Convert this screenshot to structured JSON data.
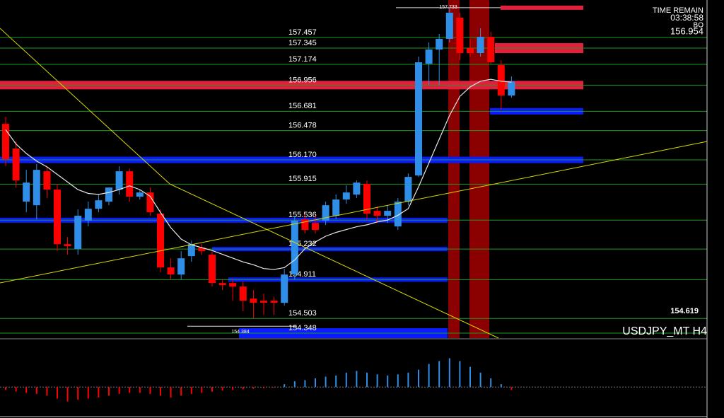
{
  "chart_data": {
    "type": "candlestick",
    "symbol": "USDJPY_MT H4",
    "timer_title": "TIME REMAIN",
    "timer": "03:38:58",
    "timer_tag": "BO",
    "bid": "156.954",
    "side_value": "154.619",
    "high_label": "157.733",
    "low_label": "154.384",
    "up_color": "#2f8fe8",
    "down_color": "#ff0000",
    "ylim": [
      154.259,
      157.814
    ],
    "levels": [
      157.457,
      157.345,
      157.174,
      156.956,
      156.681,
      156.478,
      {
        "value": 156.17,
        "label": "156.170"
      },
      155.915,
      155.536,
      155.232,
      154.911,
      154.503,
      154.348
    ],
    "open": [
      156.512,
      156.252,
      155.694,
      155.656,
      156.013,
      155.82,
      155.247,
      155.195,
      155.493,
      155.619,
      155.694,
      155.82,
      156.013,
      155.746,
      155.79,
      155.567,
      155.002,
      154.927,
      155.121,
      155.21,
      155.136,
      154.838,
      154.838,
      154.801,
      154.674,
      154.652,
      154.652,
      154.63,
      154.927,
      155.508,
      155.47,
      155.493,
      155.545,
      155.716,
      155.768,
      155.88,
      155.597,
      155.545,
      155.433,
      155.694,
      155.969,
      157.144,
      157.293,
      157.405,
      157.628,
      157.308,
      157.256,
      157.427,
      157.13,
      156.81
    ],
    "high": [
      156.586,
      156.326,
      156.028,
      156.088,
      156.066,
      155.88,
      155.322,
      155.612,
      155.694,
      155.768,
      155.842,
      156.066,
      156.043,
      155.82,
      155.842,
      155.612,
      155.098,
      155.173,
      155.284,
      155.247,
      155.173,
      154.875,
      154.875,
      154.853,
      154.764,
      154.726,
      154.689,
      154.987,
      155.545,
      155.567,
      155.545,
      155.694,
      155.768,
      155.865,
      155.917,
      155.917,
      155.642,
      155.656,
      155.731,
      155.991,
      157.219,
      157.368,
      157.457,
      157.74,
      157.68,
      157.405,
      157.516,
      157.479,
      157.182,
      157.01
    ],
    "low": [
      156.066,
      155.842,
      155.582,
      155.508,
      155.731,
      155.173,
      155.136,
      155.136,
      155.433,
      155.582,
      155.656,
      155.768,
      155.694,
      155.716,
      155.545,
      154.95,
      154.875,
      154.875,
      155.061,
      155.136,
      154.801,
      154.764,
      154.652,
      154.54,
      154.466,
      154.503,
      154.503,
      154.6,
      154.875,
      155.359,
      155.359,
      155.448,
      155.508,
      155.671,
      155.731,
      155.508,
      155.47,
      155.47,
      155.396,
      155.656,
      155.954,
      156.921,
      156.921,
      157.368,
      157.182,
      157.219,
      157.219,
      157.144,
      156.661,
      156.787
    ],
    "close": [
      156.14,
      155.917,
      155.894,
      156.028,
      155.82,
      155.247,
      155.225,
      155.545,
      155.619,
      155.708,
      155.842,
      156.013,
      155.746,
      155.79,
      155.582,
      155.002,
      154.927,
      155.098,
      155.247,
      155.173,
      154.838,
      154.816,
      154.801,
      154.652,
      154.63,
      154.63,
      154.63,
      154.927,
      155.493,
      155.396,
      155.396,
      155.656,
      155.716,
      155.79,
      155.894,
      155.567,
      155.545,
      155.597,
      155.694,
      155.954,
      157.159,
      157.293,
      157.405,
      157.68,
      157.256,
      157.256,
      157.427,
      157.159,
      156.81,
      156.958
    ],
    "ma": {
      "color": "#e8e8e8",
      "values": [
        156.45,
        156.3,
        156.2,
        156.12,
        156.06,
        155.98,
        155.9,
        155.82,
        155.78,
        155.77,
        155.79,
        155.82,
        155.86,
        155.82,
        155.75,
        155.58,
        155.42,
        155.3,
        155.24,
        155.21,
        155.18,
        155.14,
        155.1,
        155.06,
        155.03,
        154.99,
        154.98,
        155.0,
        155.08,
        155.2,
        155.27,
        155.33,
        155.37,
        155.4,
        155.43,
        155.45,
        155.48,
        155.5,
        155.55,
        155.62,
        155.85,
        156.1,
        156.35,
        156.6,
        156.8,
        156.9,
        156.96,
        156.98,
        156.96,
        156.95
      ]
    },
    "oscillator": {
      "ylim": [
        -0.5,
        0.8
      ],
      "values": [
        -0.05,
        -0.08,
        -0.1,
        -0.12,
        -0.15,
        -0.2,
        -0.25,
        -0.22,
        -0.2,
        -0.18,
        -0.15,
        -0.12,
        -0.1,
        -0.1,
        -0.12,
        -0.15,
        -0.18,
        -0.15,
        -0.12,
        -0.1,
        -0.08,
        -0.06,
        -0.05,
        -0.04,
        -0.03,
        -0.02,
        -0.01,
        0.05,
        0.1,
        0.12,
        0.15,
        0.18,
        0.2,
        0.25,
        0.28,
        0.25,
        0.22,
        0.2,
        0.22,
        0.25,
        0.3,
        0.4,
        0.45,
        0.5,
        0.45,
        0.35,
        0.25,
        0.15,
        0.05,
        -0.05
      ]
    }
  }
}
